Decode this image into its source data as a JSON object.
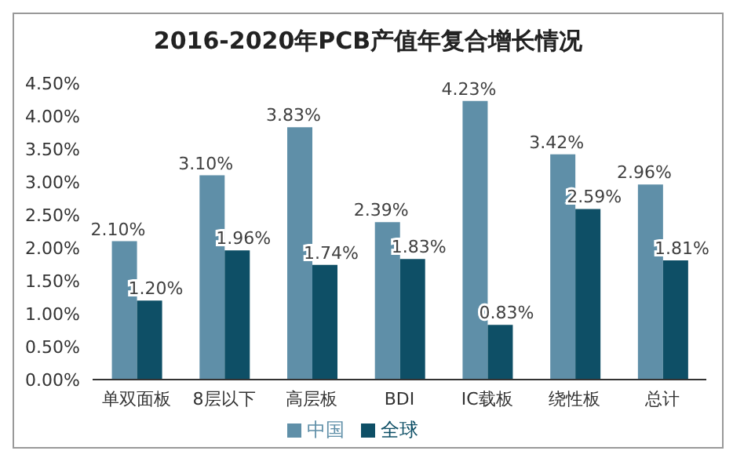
{
  "chart_data": {
    "type": "bar",
    "title": "2016-2020年PCB产值年复合增长情况",
    "categories": [
      "单双面板",
      "8层以下",
      "高层板",
      "BDI",
      "IC载板",
      "绕性板",
      "总计"
    ],
    "series": [
      {
        "name": "中国",
        "color": "#5f8fa8",
        "values": [
          2.1,
          3.1,
          3.83,
          2.39,
          4.23,
          3.42,
          2.96
        ],
        "value_labels": [
          "2.10%",
          "3.10%",
          "3.83%",
          "2.39%",
          "4.23%",
          "3.42%",
          "2.96%"
        ]
      },
      {
        "name": "全球",
        "color": "#0e4f66",
        "values": [
          1.2,
          1.96,
          1.74,
          1.83,
          0.83,
          2.59,
          1.81
        ],
        "value_labels": [
          "1.20%",
          "1.96%",
          "1.74%",
          "1.83%",
          "0.83%",
          "2.59%",
          "1.81%"
        ]
      }
    ],
    "ylim": [
      0,
      4.5
    ],
    "yticks": [
      {
        "value": 0,
        "label": "0.00%"
      },
      {
        "value": 0.5,
        "label": "0.50%"
      },
      {
        "value": 1,
        "label": "1.00%"
      },
      {
        "value": 1.5,
        "label": "1.50%"
      },
      {
        "value": 2,
        "label": "2.00%"
      },
      {
        "value": 2.5,
        "label": "2.50%"
      },
      {
        "value": 3,
        "label": "3.00%"
      },
      {
        "value": 3.5,
        "label": "3.50%"
      },
      {
        "value": 4,
        "label": "4.00%"
      },
      {
        "value": 4.5,
        "label": "4.50%"
      }
    ],
    "grid": false,
    "legend": "bottom"
  }
}
